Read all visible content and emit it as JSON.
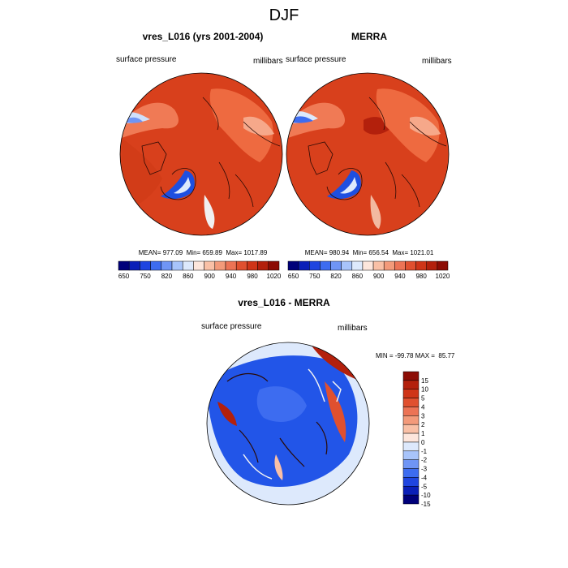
{
  "figure": {
    "title": "DJF"
  },
  "chart_data": [
    {
      "type": "heatmap",
      "title": "vres_L016 (yrs 2001-2004)",
      "left_label": "surface pressure",
      "right_label": "millibars",
      "stats": "MEAN= 977.09  Min= 659.89  Max= 1017.89",
      "mean": 977.09,
      "min": 659.89,
      "max": 1017.89,
      "projection": "north polar stereographic",
      "colorbar": {
        "orientation": "horizontal",
        "tick_labels": [
          "650",
          "750",
          "820",
          "860",
          "900",
          "940",
          "980",
          "1020"
        ],
        "colors": [
          "#00007a",
          "#0a1fb8",
          "#1f45e0",
          "#3d6cf0",
          "#6f95f5",
          "#a8c4fa",
          "#dde9fc",
          "#fde6dc",
          "#f9c0a6",
          "#f39a7a",
          "#ec7355",
          "#e0502f",
          "#cf3518",
          "#b3200c",
          "#8c0c04"
        ]
      }
    },
    {
      "type": "heatmap",
      "title": "MERRA",
      "left_label": "surface pressure",
      "right_label": "millibars",
      "stats": "MEAN= 980.94  Min= 656.54  Max= 1021.01",
      "mean": 980.94,
      "min": 656.54,
      "max": 1021.01,
      "projection": "north polar stereographic",
      "colorbar": {
        "orientation": "horizontal",
        "tick_labels": [
          "650",
          "750",
          "820",
          "860",
          "900",
          "940",
          "980",
          "1020"
        ],
        "colors": [
          "#00007a",
          "#0a1fb8",
          "#1f45e0",
          "#3d6cf0",
          "#6f95f5",
          "#a8c4fa",
          "#dde9fc",
          "#fde6dc",
          "#f9c0a6",
          "#f39a7a",
          "#ec7355",
          "#e0502f",
          "#cf3518",
          "#b3200c",
          "#8c0c04"
        ]
      }
    },
    {
      "type": "heatmap",
      "title": "vres_L016 - MERRA",
      "left_label": "surface pressure",
      "right_label": "millibars",
      "stats": "MIN = -99.78 MAX =  85.77",
      "min": -99.78,
      "max": 85.77,
      "projection": "north polar stereographic",
      "colorbar": {
        "orientation": "vertical",
        "tick_labels": [
          "15",
          "10",
          "5",
          "4",
          "3",
          "2",
          "1",
          "0",
          "-1",
          "-2",
          "-3",
          "-4",
          "-5",
          "-10",
          "-15"
        ],
        "colors": [
          "#8c0c04",
          "#b3200c",
          "#cf3518",
          "#e0502f",
          "#ec7355",
          "#f39a7a",
          "#f9c0a6",
          "#fde6dc",
          "#dde9fc",
          "#a8c4fa",
          "#6f95f5",
          "#3d6cf0",
          "#1f45e0",
          "#0a1fb8",
          "#00007a"
        ]
      }
    }
  ],
  "palette": {
    "ocean_red": "#d8401c",
    "land_red": "#e65a2c",
    "dark_red": "#b9260e",
    "greenland_blue": "#1e4fe0",
    "coast": "#2a0a05",
    "diff_blue": "#2255e8",
    "diff_light": "#9fbdf8"
  }
}
